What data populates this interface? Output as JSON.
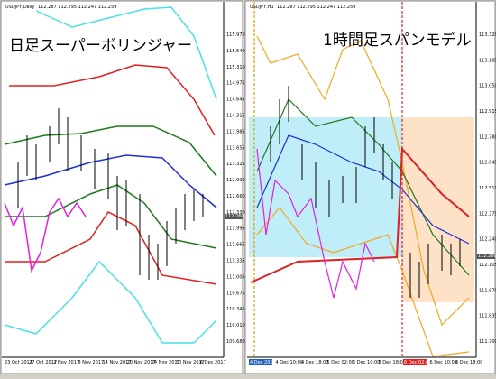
{
  "left": {
    "header": "USDJPY,Daily",
    "ohlc": "112.287 112.295 112.247 112.259",
    "title": "日足スーパーボリンジャー",
    "price_labels": [
      "115.970",
      "115.640",
      "115.310",
      "114.975",
      "114.645",
      "114.315",
      "113.985",
      "113.655",
      "113.325",
      "112.990",
      "112.660",
      "112.330",
      "111.995",
      "111.665",
      "111.335",
      "111.005",
      "110.675",
      "110.345",
      "110.010",
      "109.680"
    ],
    "current_price": "112.260",
    "dates": [
      "23 Oct 2017",
      "27 Oct 2017",
      "2 Nov 2017",
      "8 Nov 2017",
      "14 Nov 2017",
      "20 Nov 2017",
      "24 Nov 2017",
      "30 Nov 2017",
      "6 Dec 2017"
    ]
  },
  "right": {
    "header": "USDJPY,H1",
    "ohlc": "112.287 112.295 112.247 112.259",
    "title": "1時間足スパンモデル",
    "price_labels": [
      "113.320",
      "113.185",
      "113.050",
      "112.915",
      "112.780",
      "112.645",
      "112.510",
      "112.375",
      "112.240",
      "112.105",
      "111.970",
      "111.835",
      "111.700"
    ],
    "current_price": "112.260",
    "dates": [
      "4 Dec 2017",
      "4 Dec 10:00",
      "4 Dec 18:00",
      "5 Dec 02:00",
      "5 Dec 10:00",
      "5 Dec 18:00",
      "6 Dec 02:00",
      "6 Dec 10:00",
      "6 Dec 18:00"
    ]
  }
}
